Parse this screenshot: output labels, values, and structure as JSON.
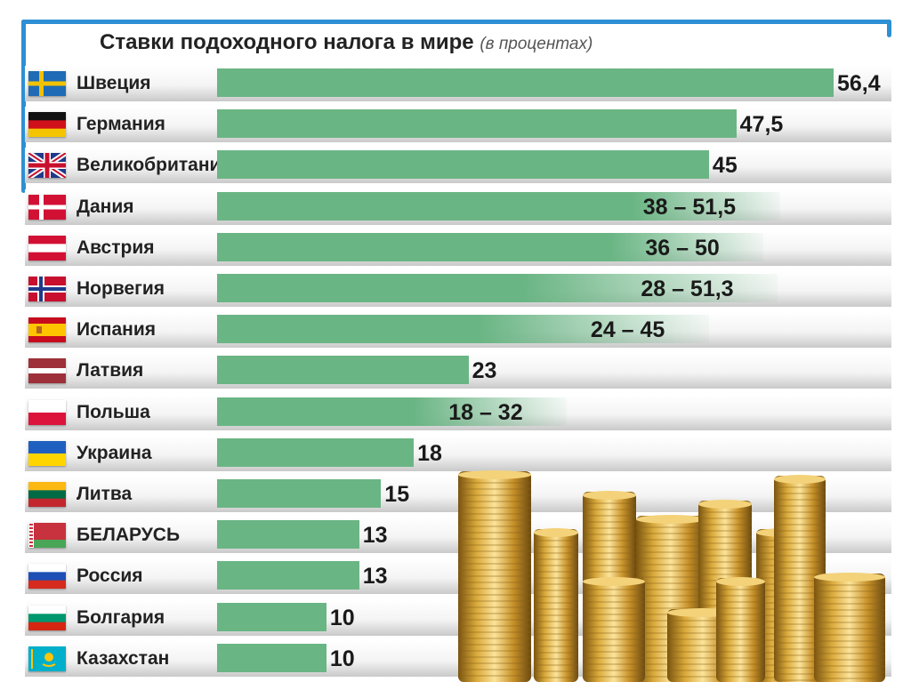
{
  "chart_data": {
    "type": "bar",
    "orientation": "horizontal",
    "title": "Ставки подоходного налога в мире",
    "subtitle": "(в процентах)",
    "unit": "%",
    "categories": [
      "Швеция",
      "Германия",
      "Великобритания",
      "Дания",
      "Австрия",
      "Норвегия",
      "Испания",
      "Латвия",
      "Польша",
      "Украина",
      "Литва",
      "БЕЛАРУСЬ",
      "Россия",
      "Болгария",
      "Казахстан"
    ],
    "rows": [
      {
        "country": "Швеция",
        "flag": "sweden-flag-icon",
        "min": 56.4,
        "max": 56.4,
        "label": "56,4"
      },
      {
        "country": "Германия",
        "flag": "germany-flag-icon",
        "min": 47.5,
        "max": 47.5,
        "label": "47,5"
      },
      {
        "country": "Великобритания",
        "flag": "uk-flag-icon",
        "min": 45,
        "max": 45,
        "label": "45"
      },
      {
        "country": "Дания",
        "flag": "denmark-flag-icon",
        "min": 38,
        "max": 51.5,
        "label": "38 – 51,5"
      },
      {
        "country": "Австрия",
        "flag": "austria-flag-icon",
        "min": 36,
        "max": 50,
        "label": "36 – 50"
      },
      {
        "country": "Норвегия",
        "flag": "norway-flag-icon",
        "min": 28,
        "max": 51.3,
        "label": "28 – 51,3"
      },
      {
        "country": "Испания",
        "flag": "spain-flag-icon",
        "min": 24,
        "max": 45,
        "label": "24 – 45"
      },
      {
        "country": "Латвия",
        "flag": "latvia-flag-icon",
        "min": 23,
        "max": 23,
        "label": "23"
      },
      {
        "country": "Польша",
        "flag": "poland-flag-icon",
        "min": 18,
        "max": 32,
        "label": "18 – 32"
      },
      {
        "country": "Украина",
        "flag": "ukraine-flag-icon",
        "min": 18,
        "max": 18,
        "label": "18"
      },
      {
        "country": "Литва",
        "flag": "lithuania-flag-icon",
        "min": 15,
        "max": 15,
        "label": "15"
      },
      {
        "country": "БЕЛАРУСЬ",
        "flag": "belarus-flag-icon",
        "min": 13,
        "max": 13,
        "label": "13"
      },
      {
        "country": "Россия",
        "flag": "russia-flag-icon",
        "min": 13,
        "max": 13,
        "label": "13"
      },
      {
        "country": "Болгария",
        "flag": "bulgaria-flag-icon",
        "min": 10,
        "max": 10,
        "label": "10"
      },
      {
        "country": "Казахстан",
        "flag": "kazakhstan-flag-icon",
        "min": 10,
        "max": 10,
        "label": "10"
      }
    ],
    "xlim": [
      0,
      56.4
    ],
    "grid": false,
    "legend": "none"
  },
  "colors": {
    "bar": "#6ab584",
    "frame": "#2e8fd4",
    "text": "#222222"
  },
  "decoration": "gold-coins-image"
}
